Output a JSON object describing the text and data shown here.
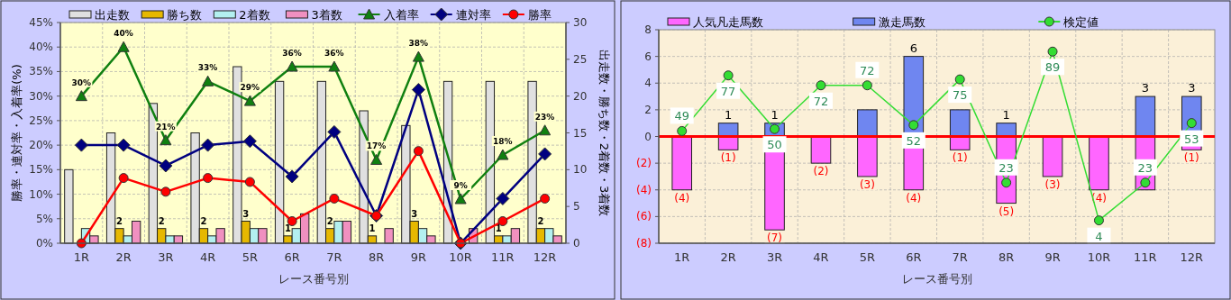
{
  "chart_data": [
    {
      "type": "bar",
      "xlabel": "レース番号別",
      "ylabel": "勝率・連対率・入着率(%)",
      "y2label": "出走数・勝ち数・2着数・3着数",
      "grid": true,
      "legend": "top",
      "categories": [
        "1R",
        "2R",
        "3R",
        "4R",
        "5R",
        "6R",
        "7R",
        "8R",
        "9R",
        "10R",
        "11R",
        "12R"
      ],
      "ylim": [
        0,
        45
      ],
      "yticks": [
        {
          "value": 0,
          "label": "0%"
        },
        {
          "value": 5,
          "label": "5%"
        },
        {
          "value": 10,
          "label": "10%"
        },
        {
          "value": 15,
          "label": "15%"
        },
        {
          "value": 20,
          "label": "20%"
        },
        {
          "value": 25,
          "label": "25%"
        },
        {
          "value": 30,
          "label": "30%"
        },
        {
          "value": 35,
          "label": "35%"
        },
        {
          "value": 40,
          "label": "40%"
        },
        {
          "value": 45,
          "label": "45%"
        }
      ],
      "y2lim": [
        0,
        30
      ],
      "y2ticks": [
        0,
        5,
        10,
        15,
        20,
        25,
        30
      ],
      "series": [
        {
          "name": "出走数",
          "color": "#e0e0e0",
          "axis": "y2",
          "values": [
            10,
            15,
            19,
            15,
            24,
            22,
            22,
            18,
            16,
            22,
            22,
            22
          ]
        },
        {
          "name": "勝ち数",
          "color": "#e6b800",
          "axis": "y2",
          "values": [
            0,
            2,
            2,
            2,
            3,
            1,
            2,
            1,
            3,
            0,
            1,
            2
          ],
          "value_labels": [
            null,
            "2",
            "2",
            "2",
            "3",
            "1",
            "2",
            "1",
            "3",
            null,
            "1",
            "2"
          ]
        },
        {
          "name": "2着数",
          "color": "#b3f0f0",
          "axis": "y2",
          "values": [
            2,
            1,
            1,
            1,
            2,
            2,
            3,
            0,
            2,
            0,
            1,
            2
          ]
        },
        {
          "name": "3着数",
          "color": "#f090c0",
          "axis": "y2",
          "values": [
            1,
            3,
            1,
            2,
            2,
            4,
            3,
            2,
            1,
            2,
            2,
            1
          ]
        },
        {
          "name": "入着率",
          "type": "line",
          "color": "#108010",
          "marker": "triangle",
          "values": [
            30,
            40,
            21,
            33,
            29,
            36,
            36,
            17,
            38,
            9,
            18,
            23
          ],
          "value_labels": [
            "30%",
            "40%",
            "21%",
            "33%",
            "29%",
            "36%",
            "36%",
            "17%",
            "38%",
            "9%",
            "18%",
            "23%"
          ]
        },
        {
          "name": "連対率",
          "type": "line",
          "color": "#000080",
          "marker": "diamond",
          "values": [
            20,
            20,
            15.8,
            20,
            20.8,
            13.6,
            22.7,
            5.6,
            31.3,
            0,
            9.1,
            18.2
          ]
        },
        {
          "name": "勝率",
          "type": "line",
          "color": "#ff0000",
          "marker": "circle",
          "values": [
            0,
            13.3,
            10.5,
            13.3,
            12.5,
            4.5,
            9.1,
            5.6,
            18.8,
            0,
            4.5,
            9.1
          ]
        }
      ]
    },
    {
      "type": "bar",
      "stacked": true,
      "xlabel": "レース番号別",
      "grid": true,
      "legend": "top",
      "data_labels": true,
      "categories": [
        "1R",
        "2R",
        "3R",
        "4R",
        "5R",
        "6R",
        "7R",
        "8R",
        "9R",
        "10R",
        "11R",
        "12R"
      ],
      "ylim": [
        -8,
        8
      ],
      "yticks": [
        {
          "value": 8,
          "label": "8"
        },
        {
          "value": 6,
          "label": "6"
        },
        {
          "value": 4,
          "label": "4"
        },
        {
          "value": 2,
          "label": "2"
        },
        {
          "value": 0,
          "label": "0"
        },
        {
          "value": -2,
          "label": "(2)"
        },
        {
          "value": -4,
          "label": "(4)"
        },
        {
          "value": -6,
          "label": "(6)"
        },
        {
          "value": -8,
          "label": "(8)"
        }
      ],
      "y2lim": [
        -7.5,
        100
      ],
      "ref_lines": [
        {
          "axis": "y",
          "value": 0,
          "color": "#ff0000"
        }
      ],
      "series": [
        {
          "name": "人気凡走馬数",
          "color": "#ff66ff",
          "values": [
            -4,
            -1,
            -7,
            -2,
            -3,
            -4,
            -1,
            -5,
            -3,
            -4,
            -4,
            -1
          ],
          "value_labels": [
            "(4)",
            "(1)",
            "(7)",
            "(2)",
            "(3)",
            "(4)",
            "(1)",
            "(5)",
            "(3)",
            "(4)",
            null,
            "(1)"
          ]
        },
        {
          "name": "激走馬数",
          "color": "#6f86f0",
          "values": [
            0,
            1,
            1,
            0,
            2,
            6,
            2,
            1,
            0,
            0,
            3,
            3
          ],
          "value_labels": [
            null,
            "1",
            "1",
            null,
            null,
            "6",
            null,
            "1",
            null,
            null,
            "3",
            "3"
          ]
        },
        {
          "name": "検定値",
          "type": "line",
          "axis": "y2",
          "color": "#33dd33",
          "marker": "circle",
          "values": [
            49,
            77,
            50,
            72,
            72,
            52,
            75,
            23,
            89,
            4,
            23,
            53
          ]
        }
      ]
    }
  ]
}
